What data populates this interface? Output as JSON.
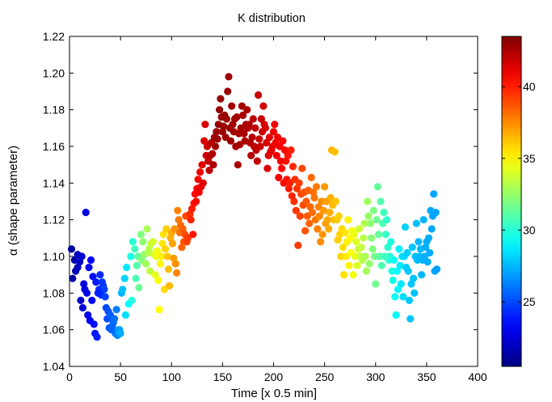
{
  "chart_data": {
    "type": "scatter",
    "title": "K distribution",
    "xlabel": "Time [x 0.5 min]",
    "ylabel": "α (shape parameter)",
    "xlim": [
      0,
      400
    ],
    "ylim": [
      1.04,
      1.22
    ],
    "xticks": [
      0,
      50,
      100,
      150,
      200,
      250,
      300,
      350,
      400
    ],
    "yticks": [
      1.04,
      1.06,
      1.08,
      1.1,
      1.12,
      1.14,
      1.16,
      1.18,
      1.2,
      1.22
    ],
    "grid": false,
    "colormap": "jet",
    "colorbar": {
      "range": [
        20.5,
        43.5
      ],
      "ticks": [
        25,
        30,
        35,
        40
      ]
    },
    "points": [
      [
        2,
        1.104
      ],
      [
        3,
        1.088
      ],
      [
        5,
        1.098
      ],
      [
        6,
        1.092
      ],
      [
        8,
        1.101
      ],
      [
        10,
        1.097
      ],
      [
        12,
        1.1
      ],
      [
        14,
        1.085
      ],
      [
        16,
        1.124
      ],
      [
        17,
        1.08
      ],
      [
        8,
        1.094
      ],
      [
        11,
        1.076
      ],
      [
        13,
        1.072
      ],
      [
        15,
        1.082
      ],
      [
        18,
        1.068
      ],
      [
        20,
        1.065
      ],
      [
        22,
        1.076
      ],
      [
        24,
        1.063
      ],
      [
        25,
        1.058
      ],
      [
        27,
        1.056
      ],
      [
        29,
        1.082
      ],
      [
        31,
        1.079
      ],
      [
        33,
        1.084
      ],
      [
        35,
        1.078
      ],
      [
        37,
        1.066
      ],
      [
        39,
        1.061
      ],
      [
        41,
        1.06
      ],
      [
        43,
        1.064
      ],
      [
        45,
        1.058
      ],
      [
        47,
        1.057
      ],
      [
        19,
        1.094
      ],
      [
        21,
        1.098
      ],
      [
        23,
        1.089
      ],
      [
        26,
        1.086
      ],
      [
        28,
        1.08
      ],
      [
        30,
        1.09
      ],
      [
        32,
        1.086
      ],
      [
        34,
        1.082
      ],
      [
        36,
        1.072
      ],
      [
        38,
        1.07
      ],
      [
        40,
        1.068
      ],
      [
        42,
        1.062
      ],
      [
        44,
        1.066
      ],
      [
        46,
        1.071
      ],
      [
        48,
        1.06
      ],
      [
        49,
        1.06
      ],
      [
        50,
        1.058
      ],
      [
        51,
        1.08
      ],
      [
        52,
        1.082
      ],
      [
        54,
        1.088
      ],
      [
        55,
        1.068
      ],
      [
        56,
        1.094
      ],
      [
        58,
        1.074
      ],
      [
        60,
        1.1
      ],
      [
        61,
        1.076
      ],
      [
        62,
        1.108
      ],
      [
        64,
        1.104
      ],
      [
        65,
        1.088
      ],
      [
        66,
        1.095
      ],
      [
        67,
        1.1
      ],
      [
        68,
        1.083
      ],
      [
        70,
        1.112
      ],
      [
        71,
        1.098
      ],
      [
        72,
        1.108
      ],
      [
        73,
        1.101
      ],
      [
        75,
        1.096
      ],
      [
        76,
        1.115
      ],
      [
        77,
        1.102
      ],
      [
        78,
        1.104
      ],
      [
        79,
        1.092
      ],
      [
        80,
        1.107
      ],
      [
        82,
        1.108
      ],
      [
        83,
        1.101
      ],
      [
        84,
        1.09
      ],
      [
        85,
        1.1
      ],
      [
        86,
        1.103
      ],
      [
        87,
        1.087
      ],
      [
        88,
        1.071
      ],
      [
        89,
        1.096
      ],
      [
        90,
        1.1
      ],
      [
        91,
        1.107
      ],
      [
        92,
        1.112
      ],
      [
        93,
        1.082
      ],
      [
        94,
        1.104
      ],
      [
        95,
        1.115
      ],
      [
        96,
        1.1
      ],
      [
        97,
        1.093
      ],
      [
        98,
        1.084
      ],
      [
        99,
        1.11
      ],
      [
        100,
        1.113
      ],
      [
        101,
        1.107
      ],
      [
        102,
        1.099
      ],
      [
        103,
        1.115
      ],
      [
        104,
        1.096
      ],
      [
        105,
        1.091
      ],
      [
        106,
        1.125
      ],
      [
        107,
        1.12
      ],
      [
        108,
        1.113
      ],
      [
        109,
        1.117
      ],
      [
        110,
        1.105
      ],
      [
        111,
        1.115
      ],
      [
        112,
        1.108
      ],
      [
        113,
        1.112
      ],
      [
        114,
        1.122
      ],
      [
        115,
        1.108
      ],
      [
        116,
        1.11
      ],
      [
        118,
        1.123
      ],
      [
        119,
        1.12
      ],
      [
        120,
        1.126
      ],
      [
        121,
        1.112
      ],
      [
        122,
        1.129
      ],
      [
        123,
        1.134
      ],
      [
        124,
        1.13
      ],
      [
        125,
        1.137
      ],
      [
        126,
        1.142
      ],
      [
        127,
        1.135
      ],
      [
        128,
        1.146
      ],
      [
        129,
        1.138
      ],
      [
        130,
        1.15
      ],
      [
        131,
        1.14
      ],
      [
        132,
        1.163
      ],
      [
        133,
        1.172
      ],
      [
        134,
        1.155
      ],
      [
        135,
        1.16
      ],
      [
        136,
        1.152
      ],
      [
        137,
        1.147
      ],
      [
        138,
        1.155
      ],
      [
        139,
        1.162
      ],
      [
        140,
        1.156
      ],
      [
        141,
        1.15
      ],
      [
        142,
        1.165
      ],
      [
        143,
        1.16
      ],
      [
        144,
        1.168
      ],
      [
        145,
        1.164
      ],
      [
        146,
        1.172
      ],
      [
        147,
        1.18
      ],
      [
        148,
        1.186
      ],
      [
        149,
        1.176
      ],
      [
        150,
        1.168
      ],
      [
        151,
        1.171
      ],
      [
        152,
        1.177
      ],
      [
        153,
        1.165
      ],
      [
        154,
        1.175
      ],
      [
        155,
        1.19
      ],
      [
        156,
        1.198
      ],
      [
        157,
        1.17
      ],
      [
        158,
        1.163
      ],
      [
        159,
        1.182
      ],
      [
        160,
        1.172
      ],
      [
        161,
        1.168
      ],
      [
        162,
        1.175
      ],
      [
        163,
        1.16
      ],
      [
        164,
        1.176
      ],
      [
        165,
        1.15
      ],
      [
        166,
        1.167
      ],
      [
        167,
        1.161
      ],
      [
        168,
        1.17
      ],
      [
        169,
        1.182
      ],
      [
        170,
        1.177
      ],
      [
        171,
        1.167
      ],
      [
        172,
        1.163
      ],
      [
        173,
        1.172
      ],
      [
        174,
        1.18
      ],
      [
        175,
        1.17
      ],
      [
        176,
        1.172
      ],
      [
        177,
        1.162
      ],
      [
        178,
        1.155
      ],
      [
        179,
        1.165
      ],
      [
        180,
        1.175
      ],
      [
        181,
        1.16
      ],
      [
        182,
        1.17
      ],
      [
        183,
        1.158
      ],
      [
        184,
        1.152
      ],
      [
        185,
        1.188
      ],
      [
        186,
        1.164
      ],
      [
        187,
        1.16
      ],
      [
        188,
        1.175
      ],
      [
        189,
        1.168
      ],
      [
        190,
        1.182
      ],
      [
        191,
        1.172
      ],
      [
        192,
        1.17
      ],
      [
        193,
        1.162
      ],
      [
        194,
        1.148
      ],
      [
        195,
        1.155
      ],
      [
        196,
        1.165
      ],
      [
        197,
        1.157
      ],
      [
        198,
        1.158
      ],
      [
        199,
        1.16
      ],
      [
        200,
        1.168
      ],
      [
        201,
        1.172
      ],
      [
        202,
        1.162
      ],
      [
        203,
        1.155
      ],
      [
        204,
        1.165
      ],
      [
        205,
        1.143
      ],
      [
        206,
        1.16
      ],
      [
        207,
        1.152
      ],
      [
        208,
        1.148
      ],
      [
        209,
        1.163
      ],
      [
        210,
        1.14
      ],
      [
        211,
        1.158
      ],
      [
        212,
        1.152
      ],
      [
        213,
        1.142
      ],
      [
        214,
        1.155
      ],
      [
        215,
        1.137
      ],
      [
        216,
        1.14
      ],
      [
        217,
        1.158
      ],
      [
        218,
        1.133
      ],
      [
        219,
        1.149
      ],
      [
        220,
        1.13
      ],
      [
        221,
        1.142
      ],
      [
        222,
        1.125
      ],
      [
        223,
        1.137
      ],
      [
        224,
        1.106
      ],
      [
        225,
        1.14
      ],
      [
        226,
        1.122
      ],
      [
        227,
        1.134
      ],
      [
        228,
        1.148
      ],
      [
        229,
        1.128
      ],
      [
        230,
        1.135
      ],
      [
        231,
        1.114
      ],
      [
        232,
        1.13
      ],
      [
        233,
        1.122
      ],
      [
        234,
        1.136
      ],
      [
        235,
        1.118
      ],
      [
        236,
        1.127
      ],
      [
        237,
        1.143
      ],
      [
        238,
        1.124
      ],
      [
        239,
        1.135
      ],
      [
        240,
        1.132
      ],
      [
        241,
        1.12
      ],
      [
        242,
        1.138
      ],
      [
        243,
        1.115
      ],
      [
        244,
        1.127
      ],
      [
        245,
        1.122
      ],
      [
        246,
        1.108
      ],
      [
        247,
        1.13
      ],
      [
        248,
        1.112
      ],
      [
        249,
        1.125
      ],
      [
        250,
        1.138
      ],
      [
        251,
        1.118
      ],
      [
        252,
        1.13
      ],
      [
        253,
        1.12
      ],
      [
        254,
        1.115
      ],
      [
        255,
        1.124
      ],
      [
        256,
        1.132
      ],
      [
        257,
        1.158
      ],
      [
        258,
        1.128
      ],
      [
        259,
        1.12
      ],
      [
        260,
        1.157
      ],
      [
        261,
        1.13
      ],
      [
        262,
        1.12
      ],
      [
        263,
        1.109
      ],
      [
        264,
        1.122
      ],
      [
        265,
        1.112
      ],
      [
        266,
        1.1
      ],
      [
        267,
        1.115
      ],
      [
        268,
        1.105
      ],
      [
        269,
        1.09
      ],
      [
        270,
        1.113
      ],
      [
        271,
        1.1
      ],
      [
        272,
        1.108
      ],
      [
        273,
        1.12
      ],
      [
        274,
        1.095
      ],
      [
        275,
        1.11
      ],
      [
        276,
        1.102
      ],
      [
        277,
        1.114
      ],
      [
        278,
        1.09
      ],
      [
        279,
        1.112
      ],
      [
        280,
        1.1
      ],
      [
        281,
        1.108
      ],
      [
        282,
        1.095
      ],
      [
        283,
        1.104
      ],
      [
        284,
        1.115
      ],
      [
        285,
        1.1
      ],
      [
        286,
        1.105
      ],
      [
        287,
        1.098
      ],
      [
        288,
        1.11
      ],
      [
        289,
        1.118
      ],
      [
        290,
        1.1
      ],
      [
        291,
        1.092
      ],
      [
        292,
        1.13
      ],
      [
        293,
        1.122
      ],
      [
        294,
        1.096
      ],
      [
        295,
        1.118
      ],
      [
        296,
        1.11
      ],
      [
        297,
        1.104
      ],
      [
        298,
        1.125
      ],
      [
        299,
        1.1
      ],
      [
        300,
        1.085
      ],
      [
        301,
        1.12
      ],
      [
        302,
        1.138
      ],
      [
        303,
        1.112
      ],
      [
        304,
        1.1
      ],
      [
        305,
        1.13
      ],
      [
        306,
        1.095
      ],
      [
        307,
        1.118
      ],
      [
        308,
        1.124
      ],
      [
        309,
        1.1
      ],
      [
        310,
        1.112
      ],
      [
        311,
        1.12
      ],
      [
        312,
        1.105
      ],
      [
        313,
        1.098
      ],
      [
        314,
        1.1
      ],
      [
        315,
        1.108
      ],
      [
        316,
        1.092
      ],
      [
        317,
        1.087
      ],
      [
        318,
        1.098
      ],
      [
        319,
        1.078
      ],
      [
        320,
        1.068
      ],
      [
        321,
        1.092
      ],
      [
        322,
        1.082
      ],
      [
        323,
        1.104
      ],
      [
        324,
        1.095
      ],
      [
        325,
        1.085
      ],
      [
        326,
        1.1
      ],
      [
        327,
        1.078
      ],
      [
        328,
        1.1
      ],
      [
        329,
        1.116
      ],
      [
        330,
        1.094
      ],
      [
        331,
        1.102
      ],
      [
        332,
        1.092
      ],
      [
        333,
        1.076
      ],
      [
        334,
        1.066
      ],
      [
        335,
        1.085
      ],
      [
        336,
        1.105
      ],
      [
        337,
        1.088
      ],
      [
        338,
        1.08
      ],
      [
        339,
        1.1
      ],
      [
        340,
        1.118
      ],
      [
        341,
        1.098
      ],
      [
        342,
        1.108
      ],
      [
        343,
        1.1
      ],
      [
        344,
        1.104
      ],
      [
        345,
        1.09
      ],
      [
        346,
        1.098
      ],
      [
        347,
        1.12
      ],
      [
        348,
        1.1
      ],
      [
        349,
        1.105
      ],
      [
        350,
        1.108
      ],
      [
        351,
        1.097
      ],
      [
        352,
        1.11
      ],
      [
        353,
        1.102
      ],
      [
        354,
        1.125
      ],
      [
        355,
        1.115
      ],
      [
        356,
        1.122
      ],
      [
        357,
        1.134
      ],
      [
        358,
        1.092
      ],
      [
        359,
        1.124
      ],
      [
        360,
        1.093
      ],
      [
        309,
        1.1
      ]
    ]
  }
}
